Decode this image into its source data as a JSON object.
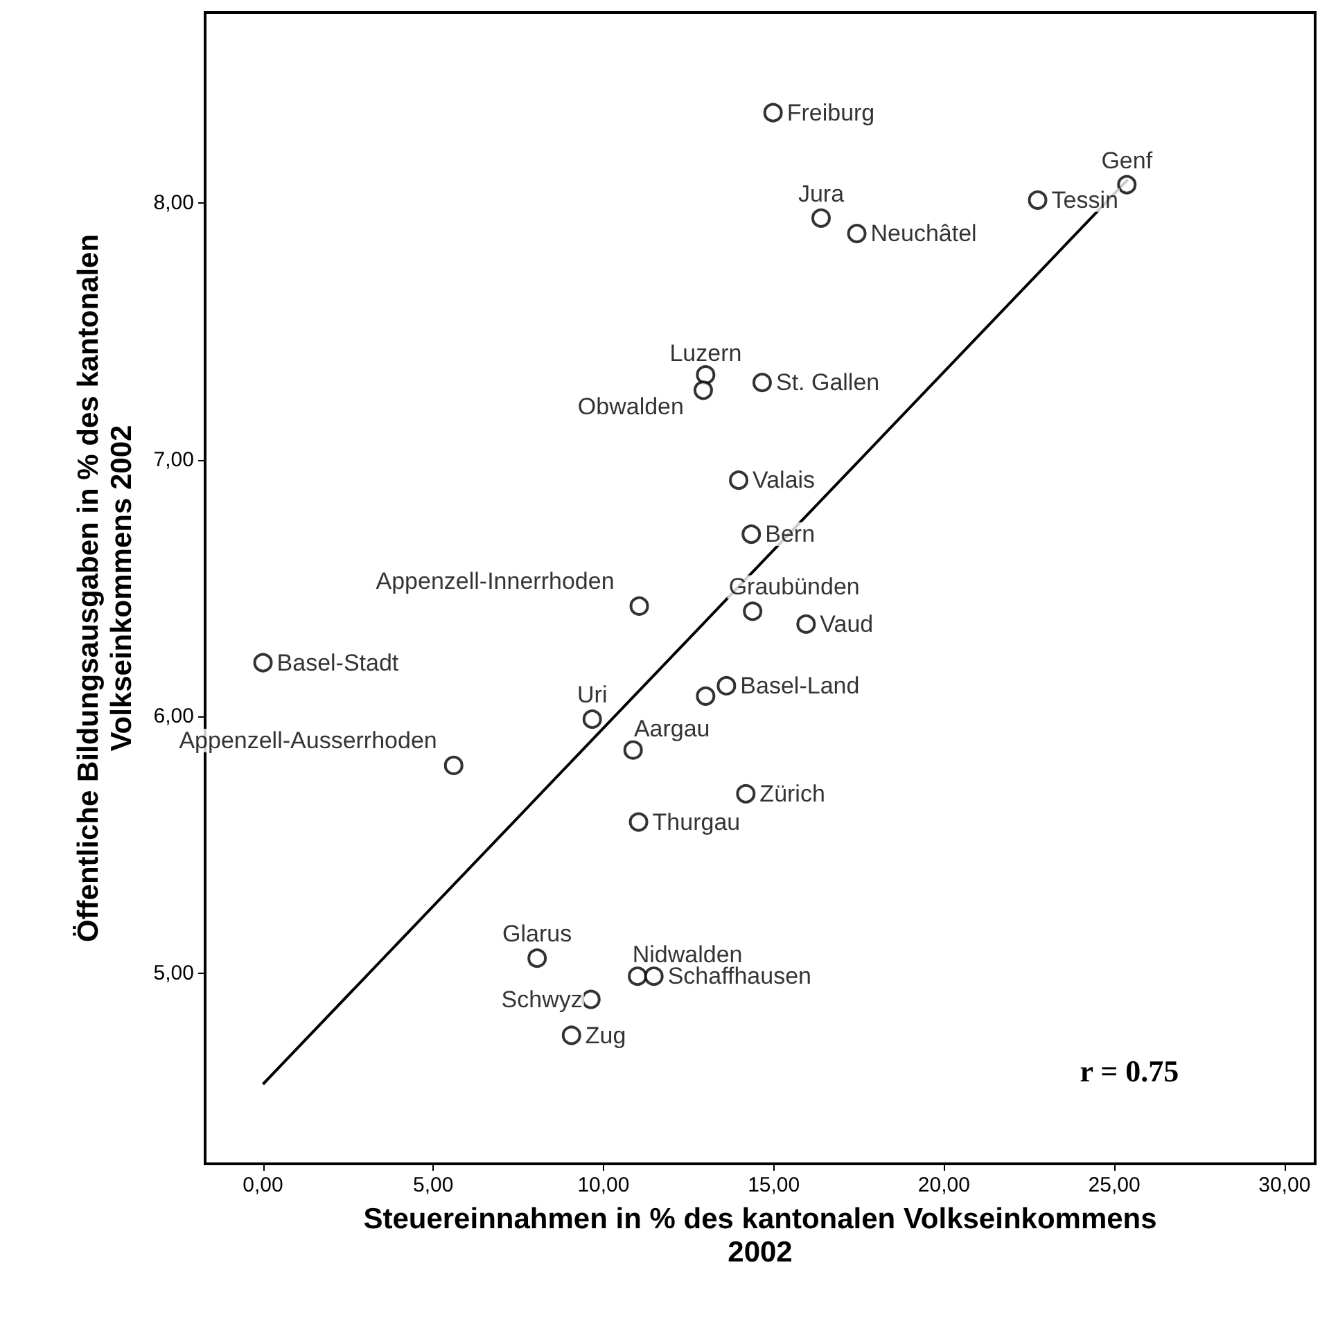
{
  "chart_data": {
    "type": "scatter",
    "xlabel": "Steuereinnahmen in % des kantonalen Volkseinkommens 2002",
    "ylabel": "Öffentliche Bildungsausgaben in % des kantonalen Volkseinkommens 2002",
    "xlim": [
      -1.7,
      30.9
    ],
    "ylim": [
      4.26,
      8.74
    ],
    "xticks": [
      {
        "value": 0,
        "label": "0,00"
      },
      {
        "value": 5,
        "label": "5,00"
      },
      {
        "value": 10,
        "label": "10,00"
      },
      {
        "value": 15,
        "label": "15,00"
      },
      {
        "value": 20,
        "label": "20,00"
      },
      {
        "value": 25,
        "label": "25,00"
      },
      {
        "value": 30,
        "label": "30,00"
      }
    ],
    "yticks": [
      {
        "value": 5,
        "label": "5,00"
      },
      {
        "value": 6,
        "label": "6,00"
      },
      {
        "value": 7,
        "label": "7,00"
      },
      {
        "value": 8,
        "label": "8,00"
      }
    ],
    "grid": false,
    "marker": "circle",
    "series": [
      {
        "color": "#000000",
        "x": [
          14.98,
          25.37,
          22.75,
          16.39,
          17.44,
          13.0,
          14.66,
          12.93,
          13.97,
          14.34,
          11.05,
          14.38,
          15.95,
          0.0,
          13.61,
          13.0,
          9.67,
          5.6,
          10.87,
          14.18,
          11.03,
          8.05,
          11.0,
          11.48,
          9.63,
          9.06
        ],
        "values": [
          8.35,
          8.07,
          8.01,
          7.94,
          7.88,
          7.33,
          7.3,
          7.27,
          6.92,
          6.71,
          6.43,
          6.41,
          6.36,
          6.21,
          6.12,
          6.08,
          5.99,
          5.81,
          5.87,
          5.7,
          5.59,
          5.06,
          4.99,
          4.99,
          4.9,
          4.76
        ],
        "value_labels": [
          "Freiburg",
          "Genf",
          "Tessin",
          "Jura",
          "Neuchâtel",
          "Luzern",
          "St. Gallen",
          "Obwalden",
          "Valais",
          "Bern",
          "Appenzell-Innerrhoden",
          "Graubünden",
          "Vaud",
          "Basel-Stadt",
          "Basel-Land",
          null,
          "Uri",
          "Appenzell-Ausserrhoden",
          "Aargau",
          "Zürich",
          "Thurgau",
          "Glarus",
          "Nidwalden",
          "Schaffhausen",
          "Schwyz",
          "Zug"
        ]
      },
      {
        "type": "line",
        "color": "#000000",
        "marker": "none",
        "x": [
          0,
          25.4
        ],
        "values": [
          4.57,
          8.09
        ]
      }
    ],
    "annotations": [
      "r = 0.75"
    ]
  }
}
